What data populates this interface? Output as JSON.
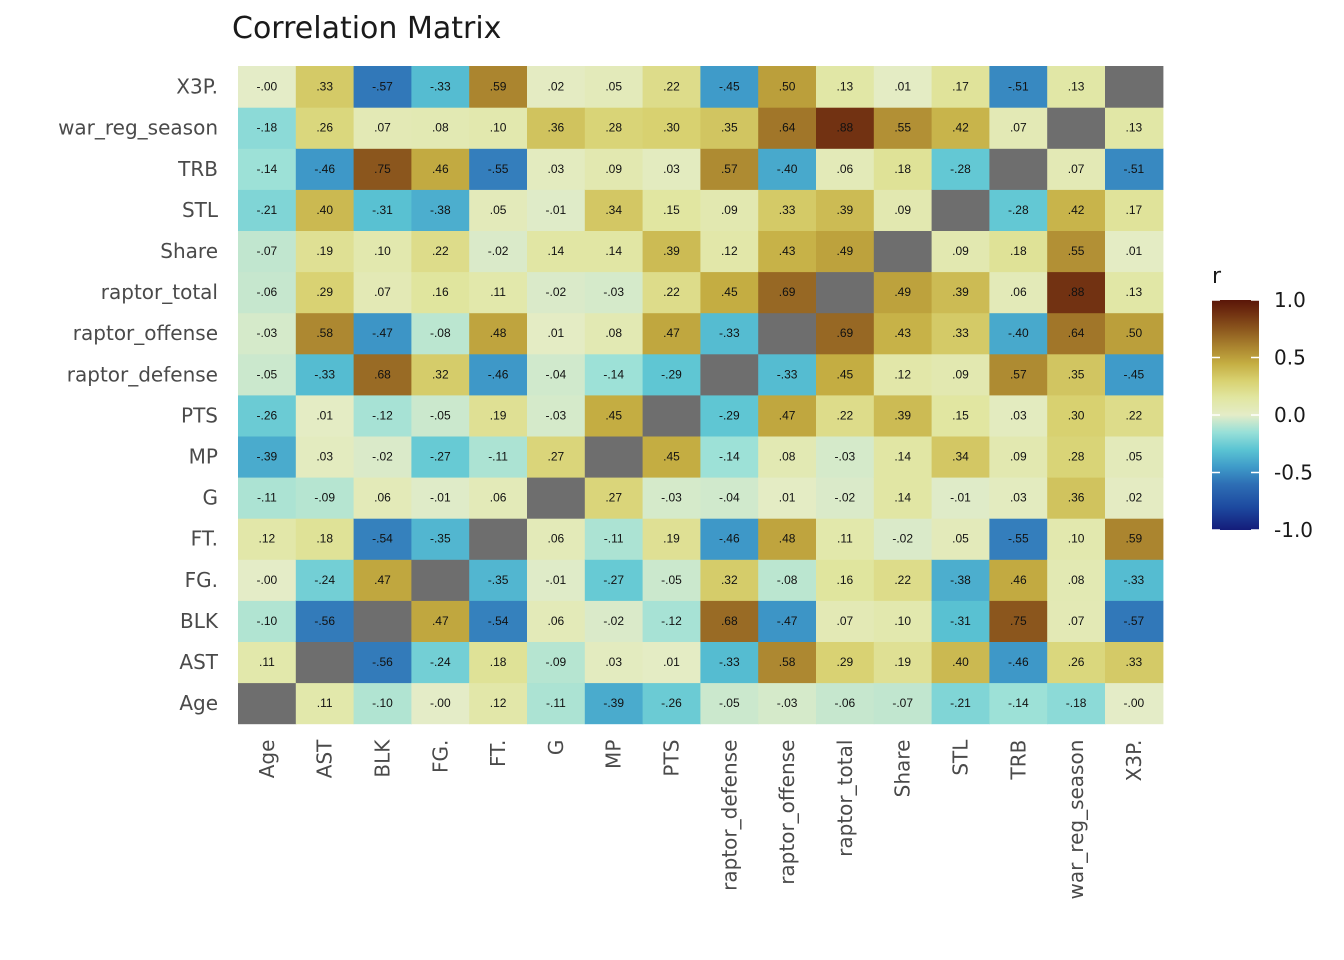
{
  "chart_data": {
    "type": "heatmap",
    "title": "Correlation Matrix",
    "xlabel": "",
    "ylabel": "",
    "variables": [
      "Age",
      "AST",
      "BLK",
      "FG.",
      "FT.",
      "G",
      "MP",
      "PTS",
      "raptor_defense",
      "raptor_offense",
      "raptor_total",
      "Share",
      "STL",
      "TRB",
      "war_reg_season",
      "X3P."
    ],
    "matrix": [
      [
        null,
        0.11,
        -0.1,
        -0.0,
        0.12,
        -0.11,
        -0.39,
        -0.26,
        -0.05,
        -0.03,
        -0.06,
        -0.07,
        -0.21,
        -0.14,
        -0.18,
        -0.0
      ],
      [
        0.11,
        null,
        -0.56,
        -0.24,
        0.18,
        -0.09,
        0.03,
        0.01,
        -0.33,
        0.58,
        0.29,
        0.19,
        0.4,
        -0.46,
        0.26,
        0.33
      ],
      [
        -0.1,
        -0.56,
        null,
        0.47,
        -0.54,
        0.06,
        -0.02,
        -0.12,
        0.68,
        -0.47,
        0.07,
        0.1,
        -0.31,
        0.75,
        0.07,
        -0.57
      ],
      [
        -0.0,
        -0.24,
        0.47,
        null,
        -0.35,
        -0.01,
        -0.27,
        -0.05,
        0.32,
        -0.08,
        0.16,
        0.22,
        -0.38,
        0.46,
        0.08,
        -0.33
      ],
      [
        0.12,
        0.18,
        -0.54,
        -0.35,
        null,
        0.06,
        -0.11,
        0.19,
        -0.46,
        0.48,
        0.11,
        -0.02,
        0.05,
        -0.55,
        0.1,
        0.59
      ],
      [
        -0.11,
        -0.09,
        0.06,
        -0.01,
        0.06,
        null,
        0.27,
        -0.03,
        -0.04,
        0.01,
        -0.02,
        0.14,
        -0.01,
        0.03,
        0.36,
        0.02
      ],
      [
        -0.39,
        0.03,
        -0.02,
        -0.27,
        -0.11,
        0.27,
        null,
        0.45,
        -0.14,
        0.08,
        -0.03,
        0.14,
        0.34,
        0.09,
        0.28,
        0.05
      ],
      [
        -0.26,
        0.01,
        -0.12,
        -0.05,
        0.19,
        -0.03,
        0.45,
        null,
        -0.29,
        0.47,
        0.22,
        0.39,
        0.15,
        0.03,
        0.3,
        0.22
      ],
      [
        -0.05,
        -0.33,
        0.68,
        0.32,
        -0.46,
        -0.04,
        -0.14,
        -0.29,
        null,
        -0.33,
        0.45,
        0.12,
        0.09,
        0.57,
        0.35,
        -0.45
      ],
      [
        -0.03,
        0.58,
        -0.47,
        -0.08,
        0.48,
        0.01,
        0.08,
        0.47,
        -0.33,
        null,
        0.69,
        0.43,
        0.33,
        -0.4,
        0.64,
        0.5
      ],
      [
        -0.06,
        0.29,
        0.07,
        0.16,
        0.11,
        -0.02,
        -0.03,
        0.22,
        0.45,
        0.69,
        null,
        0.49,
        0.39,
        0.06,
        0.88,
        0.13
      ],
      [
        -0.07,
        0.19,
        0.1,
        0.22,
        -0.02,
        0.14,
        0.14,
        0.39,
        0.12,
        0.43,
        0.49,
        null,
        0.09,
        0.18,
        0.55,
        0.01
      ],
      [
        -0.21,
        0.4,
        -0.31,
        -0.38,
        0.05,
        -0.01,
        0.34,
        0.15,
        0.09,
        0.33,
        0.39,
        0.09,
        null,
        -0.28,
        0.42,
        0.17
      ],
      [
        -0.14,
        -0.46,
        0.75,
        0.46,
        -0.55,
        0.03,
        0.09,
        0.03,
        0.57,
        -0.4,
        0.06,
        0.18,
        -0.28,
        null,
        0.07,
        -0.51
      ],
      [
        -0.18,
        0.26,
        0.07,
        0.08,
        0.1,
        0.36,
        0.28,
        0.3,
        0.35,
        0.64,
        0.88,
        0.55,
        0.42,
        0.07,
        null,
        0.13
      ],
      [
        -0.0,
        0.33,
        -0.57,
        -0.33,
        0.59,
        0.02,
        0.05,
        0.22,
        -0.45,
        0.5,
        0.13,
        0.01,
        0.17,
        -0.51,
        0.13,
        null
      ]
    ],
    "diagonal_color": "#6e6e6e",
    "value_range": [
      -1,
      1
    ],
    "legend": {
      "title": "r",
      "ticks": [
        1.0,
        0.5,
        0.0,
        -0.5,
        -1.0
      ],
      "tick_labels": [
        "1.0",
        "0.5",
        "0.0",
        "-0.5",
        "-1.0"
      ],
      "placement": "right"
    },
    "color_scale": [
      {
        "v": -1.0,
        "c": "#141c7a"
      },
      {
        "v": -0.8,
        "c": "#1d4aa0"
      },
      {
        "v": -0.6,
        "c": "#2e6fb5"
      },
      {
        "v": -0.45,
        "c": "#3f9bc9"
      },
      {
        "v": -0.3,
        "c": "#5bc4d3"
      },
      {
        "v": -0.15,
        "c": "#98e0d8"
      },
      {
        "v": 0.0,
        "c": "#e4ecc7"
      },
      {
        "v": 0.15,
        "c": "#e1e6a1"
      },
      {
        "v": 0.3,
        "c": "#d8d170"
      },
      {
        "v": 0.45,
        "c": "#c4ad42"
      },
      {
        "v": 0.6,
        "c": "#a9822e"
      },
      {
        "v": 0.75,
        "c": "#8b561d"
      },
      {
        "v": 0.9,
        "c": "#6e2d10"
      },
      {
        "v": 1.0,
        "c": "#5a1608"
      }
    ],
    "grid": false
  }
}
